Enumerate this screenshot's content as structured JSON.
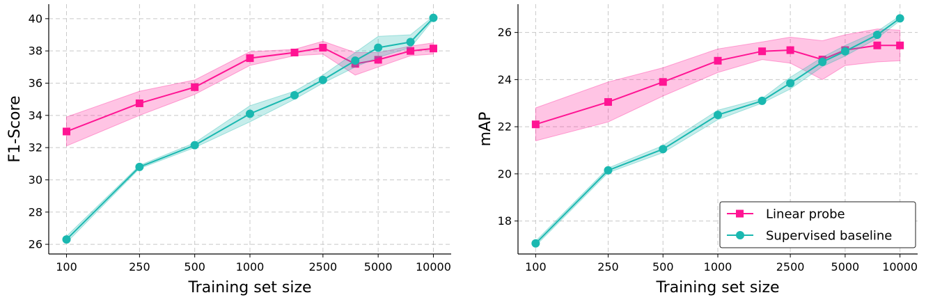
{
  "colors": {
    "linear_probe": "#ff1493",
    "supervised": "#1ab8b0",
    "grid": "#c8c8c8"
  },
  "legend": {
    "placement": "lower-right of right chart",
    "entries": [
      "Linear probe",
      "Supervised baseline"
    ]
  },
  "chart_data": [
    {
      "type": "line",
      "xscale": "log",
      "xlabel": "Training set size",
      "ylabel": "F1-Score",
      "xticks": [
        100,
        250,
        500,
        1000,
        2500,
        5000,
        10000
      ],
      "xtick_labels": [
        "100",
        "250",
        "500",
        "1000",
        "2500",
        "5000",
        "10000"
      ],
      "yticks": [
        26,
        28,
        30,
        32,
        34,
        36,
        38,
        40
      ],
      "ytick_labels": [
        "26",
        "28",
        "30",
        "32",
        "34",
        "36",
        "38",
        "40"
      ],
      "xlim": [
        80,
        12500
      ],
      "ylim": [
        25.4,
        40.9
      ],
      "grid": true,
      "series": [
        {
          "name": "Linear probe",
          "marker": "square",
          "x": [
            100,
            250,
            500,
            1000,
            1750,
            2500,
            3750,
            5000,
            7500,
            10000
          ],
          "y": [
            33.0,
            34.75,
            35.75,
            37.55,
            37.9,
            38.2,
            37.2,
            37.45,
            38.0,
            38.15
          ],
          "lower": [
            32.1,
            34.0,
            35.3,
            37.1,
            37.7,
            37.8,
            36.5,
            37.0,
            37.7,
            37.8
          ],
          "upper": [
            33.9,
            35.5,
            36.2,
            37.95,
            38.1,
            38.6,
            37.9,
            37.9,
            38.3,
            38.5
          ]
        },
        {
          "name": "Supervised baseline",
          "marker": "circle",
          "x": [
            100,
            250,
            500,
            1000,
            1750,
            2500,
            3750,
            5000,
            7500,
            10000
          ],
          "y": [
            26.3,
            30.8,
            32.15,
            34.1,
            35.25,
            36.2,
            37.4,
            38.2,
            38.55,
            40.05
          ],
          "lower": [
            26.1,
            30.7,
            32.0,
            33.6,
            35.0,
            36.0,
            37.0,
            37.6,
            38.2,
            39.95
          ],
          "upper": [
            26.5,
            30.9,
            32.3,
            34.6,
            35.5,
            36.5,
            37.9,
            38.9,
            39.0,
            40.15
          ]
        }
      ]
    },
    {
      "type": "line",
      "xscale": "log",
      "xlabel": "Training set size",
      "ylabel": "mAP",
      "xticks": [
        100,
        250,
        500,
        1000,
        2500,
        5000,
        10000
      ],
      "xtick_labels": [
        "100",
        "250",
        "500",
        "1000",
        "2500",
        "5000",
        "10000"
      ],
      "yticks": [
        18,
        20,
        22,
        24,
        26
      ],
      "ytick_labels": [
        "18",
        "20",
        "22",
        "24",
        "26"
      ],
      "xlim": [
        80,
        12500
      ],
      "ylim": [
        16.6,
        27.2
      ],
      "grid": true,
      "series": [
        {
          "name": "Linear probe",
          "marker": "square",
          "x": [
            100,
            250,
            500,
            1000,
            1750,
            2500,
            3750,
            5000,
            7500,
            10000
          ],
          "y": [
            22.1,
            23.05,
            23.9,
            24.8,
            25.2,
            25.25,
            24.85,
            25.25,
            25.45,
            25.45
          ],
          "lower": [
            21.4,
            22.2,
            23.3,
            24.3,
            24.85,
            24.7,
            24.0,
            24.6,
            24.75,
            24.8
          ],
          "upper": [
            22.8,
            23.9,
            24.5,
            25.3,
            25.6,
            25.8,
            25.65,
            25.9,
            26.15,
            26.1
          ]
        },
        {
          "name": "Supervised baseline",
          "marker": "circle",
          "x": [
            100,
            250,
            500,
            1000,
            1750,
            2500,
            3750,
            5000,
            7500,
            10000
          ],
          "y": [
            17.05,
            20.15,
            21.05,
            22.5,
            23.1,
            23.85,
            24.75,
            25.2,
            25.9,
            26.6
          ],
          "lower": [
            16.95,
            20.05,
            20.9,
            22.3,
            23.0,
            23.6,
            24.55,
            25.0,
            25.75,
            26.5
          ],
          "upper": [
            17.15,
            20.25,
            21.2,
            22.7,
            23.2,
            24.1,
            24.95,
            25.45,
            26.05,
            26.7
          ]
        }
      ]
    }
  ]
}
